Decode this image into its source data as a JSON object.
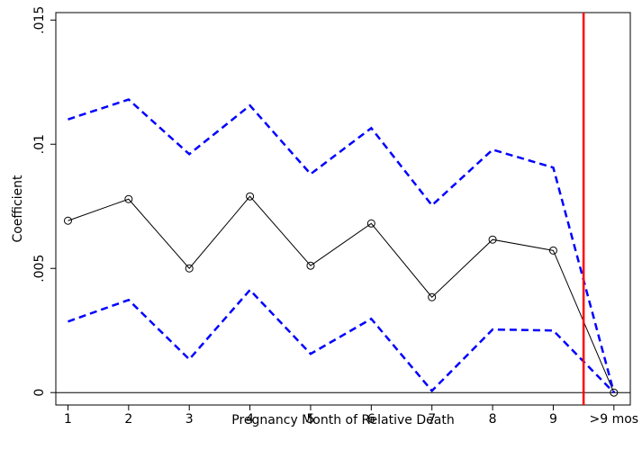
{
  "chart_data": {
    "type": "line",
    "x_label": "Pregnancy Month of Relative Death",
    "y_label": "Coefficient",
    "x": [
      1,
      2,
      3,
      4,
      5,
      6,
      7,
      8,
      9,
      10
    ],
    "series": [
      {
        "color": "#000000",
        "dash": false,
        "marker": "circle",
        "values": [
          0.00692,
          0.00779,
          0.005,
          0.0079,
          0.00511,
          0.00681,
          0.00384,
          0.00616,
          0.00572,
          0
        ]
      },
      {
        "color": "#0000ff",
        "dash": true,
        "marker": "none",
        "values": [
          0.011,
          0.0118,
          0.0096,
          0.01156,
          0.0088,
          0.01065,
          0.00754,
          0.00978,
          0.00906,
          0
        ]
      },
      {
        "color": "#0000ff",
        "dash": true,
        "marker": "none",
        "values": [
          0.00286,
          0.00373,
          0.00134,
          0.00413,
          0.00156,
          0.00297,
          7e-05,
          0.00254,
          0.0025,
          0
        ]
      }
    ],
    "xlim": [
      0.8,
      10.27
    ],
    "ylim": [
      -0.0005,
      0.0153
    ],
    "xticks": [
      1,
      2,
      3,
      4,
      5,
      6,
      7,
      8,
      9,
      {
        "value": 10,
        "label": ">9 mos"
      }
    ],
    "yticks": [
      0,
      {
        "value": 0.005,
        "label": ".005"
      },
      {
        "value": 0.01,
        "label": ".01"
      },
      {
        "value": 0.015,
        "label": ".015"
      }
    ],
    "zero_line": true,
    "vline": {
      "x": 9.5,
      "color": "#ff0000"
    }
  }
}
